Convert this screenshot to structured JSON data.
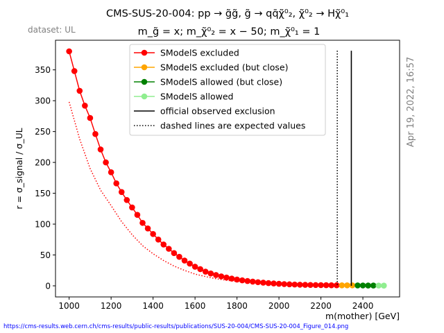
{
  "title_line1": "CMS-SUS-20-004: pp → g̃g̃, g̃ → qq̄χ̃⁰₂, χ̃⁰₂ → Hχ̃⁰₁",
  "title_line2": "m_g̃ = x; m_χ̃⁰₂ = x − 50; m_χ̃⁰₁ = 1",
  "dataset_label": "dataset: UL",
  "timestamp": "Apr 19, 2022, 16:57",
  "source_url": "https://cms-results.web.cern.ch/cms-results/public-results/publications/SUS-20-004/CMS-SUS-20-004_Figure_014.png",
  "colors": {
    "excluded": "#ff0000",
    "excluded_close": "#ffa500",
    "allowed_close": "#008000",
    "allowed": "#90ee90",
    "official": "#000000",
    "url": "#0000ff",
    "timestamp": "#808080"
  },
  "chart_data": {
    "type": "line",
    "xlabel": "m(mother) [GeV]",
    "ylabel": "r = σ_signal / σ_UL",
    "xlim": [
      935,
      2575
    ],
    "ylim": [
      -18,
      398
    ],
    "xticks": [
      1000,
      1200,
      1400,
      1600,
      1800,
      2000,
      2200,
      2400
    ],
    "yticks": [
      0,
      50,
      100,
      150,
      200,
      250,
      300,
      350
    ],
    "legend_position": "top-right",
    "legend": [
      {
        "label": "SModelS excluded",
        "style": "line-marker",
        "color": "#ff0000"
      },
      {
        "label": "SModelS excluded (but close)",
        "style": "line-marker",
        "color": "#ffa500"
      },
      {
        "label": "SModelS allowed (but close)",
        "style": "line-marker",
        "color": "#008000"
      },
      {
        "label": "SModelS allowed",
        "style": "line-marker",
        "color": "#90ee90"
      },
      {
        "label": "official observed exclusion",
        "style": "solid",
        "color": "#000000"
      },
      {
        "label": "dashed lines are expected values",
        "style": "dotted",
        "color": "#000000"
      }
    ],
    "series": [
      {
        "name": "SModelS excluded",
        "status": "excluded",
        "x": [
          1000,
          1025,
          1050,
          1075,
          1100,
          1125,
          1150,
          1175,
          1200,
          1225,
          1250,
          1275,
          1300,
          1325,
          1350,
          1375,
          1400,
          1425,
          1450,
          1475,
          1500,
          1525,
          1550,
          1575,
          1600,
          1625,
          1650,
          1675,
          1700,
          1725,
          1750,
          1775,
          1800,
          1825,
          1850,
          1875,
          1900,
          1925,
          1950,
          1975,
          2000,
          2025,
          2050,
          2075,
          2100,
          2125,
          2150,
          2175,
          2200,
          2225,
          2250,
          2275
        ],
        "y": [
          380,
          348,
          316,
          292,
          272,
          246,
          221,
          200,
          184,
          166,
          152,
          139,
          127,
          115,
          102,
          93,
          84,
          75,
          67,
          60,
          53,
          47,
          41,
          36,
          31,
          27,
          23,
          20,
          17.5,
          15.3,
          13.4,
          11.7,
          10.2,
          8.9,
          7.8,
          6.8,
          5.9,
          5.1,
          4.4,
          3.8,
          3.3,
          2.8,
          2.4,
          2.1,
          1.8,
          1.6,
          1.4,
          1.25,
          1.1,
          1.0,
          0.9,
          0.85
        ]
      },
      {
        "name": "SModelS excluded (but close)",
        "status": "excluded_close",
        "x": [
          2300,
          2325,
          2350
        ],
        "y": [
          0.8,
          0.75,
          0.7
        ]
      },
      {
        "name": "SModelS allowed (but close)",
        "status": "allowed_close",
        "x": [
          2375,
          2400,
          2425,
          2450
        ],
        "y": [
          0.6,
          0.55,
          0.5,
          0.45
        ]
      },
      {
        "name": "SModelS allowed",
        "status": "allowed",
        "x": [
          2475,
          2500
        ],
        "y": [
          0.4,
          0.35
        ]
      },
      {
        "name": "SModelS expected",
        "status": "expected",
        "x": [
          1000,
          1050,
          1100,
          1150,
          1200,
          1250,
          1300,
          1350,
          1400,
          1450,
          1500,
          1550,
          1600,
          1650,
          1700,
          1750,
          1800,
          1850,
          1900,
          1950,
          2000,
          2050,
          2100,
          2150,
          2200,
          2250,
          2275
        ],
        "y": [
          298,
          238,
          190,
          155,
          130,
          104,
          83,
          65,
          52,
          41,
          32,
          25,
          19,
          15,
          11.5,
          9,
          7,
          5.5,
          4.2,
          3.3,
          2.6,
          2.0,
          1.6,
          1.3,
          1.1,
          0.95,
          0.9
        ]
      }
    ],
    "official_observed_x": 2345,
    "official_expected_x": 2278,
    "vline_top": 381
  }
}
